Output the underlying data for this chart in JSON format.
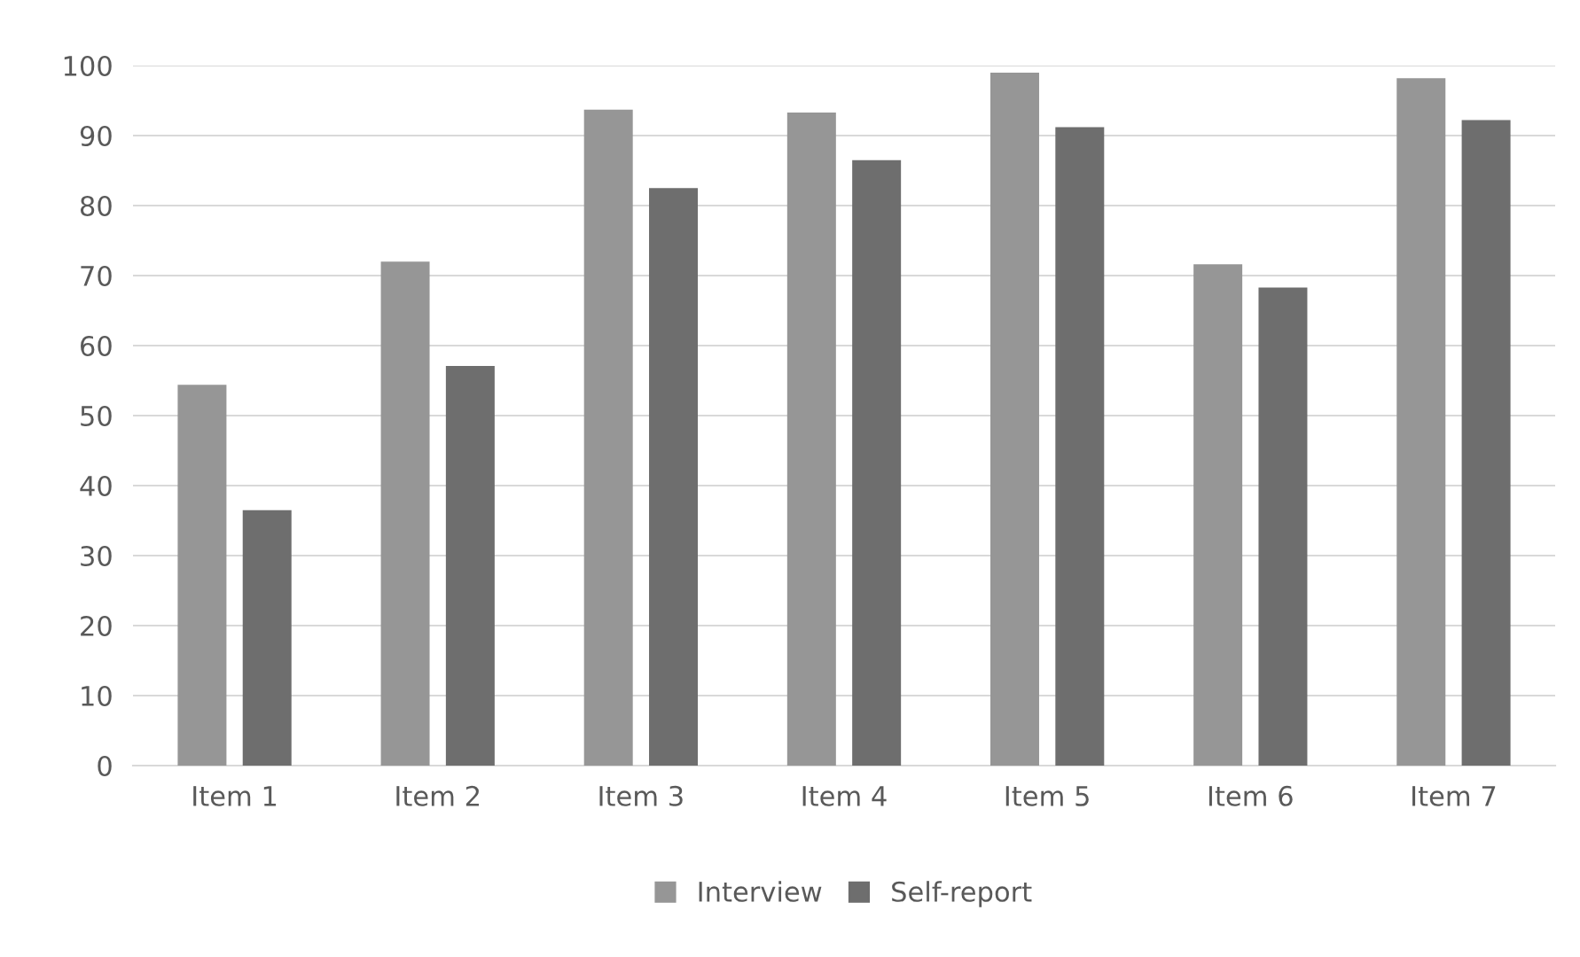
{
  "chart_data": {
    "type": "bar",
    "categories": [
      "Item 1",
      "Item 2",
      "Item 3",
      "Item 4",
      "Item 5",
      "Item 6",
      "Item 7"
    ],
    "series": [
      {
        "name": "Interview",
        "color": "#969696",
        "values": [
          54.4,
          72.0,
          93.7,
          93.3,
          99.0,
          71.6,
          98.2
        ]
      },
      {
        "name": "Self-report",
        "color": "#6e6e6e",
        "values": [
          36.5,
          57.1,
          82.5,
          86.5,
          91.2,
          68.3,
          92.2
        ]
      }
    ],
    "ylim": [
      0,
      100
    ],
    "yticks": [
      0,
      10,
      20,
      30,
      40,
      50,
      60,
      70,
      80,
      90,
      100
    ],
    "grid": "y",
    "legend": "bottom"
  }
}
